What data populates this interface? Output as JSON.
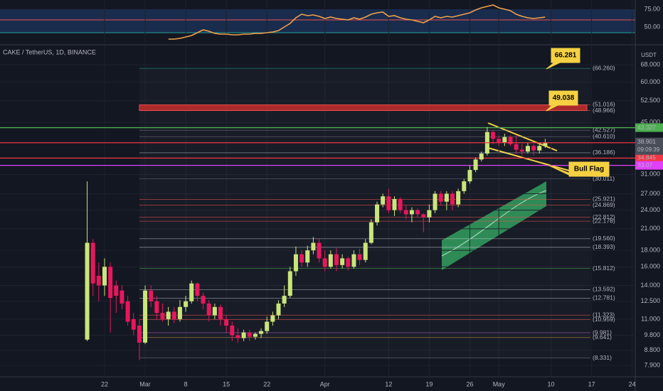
{
  "chart_data": {
    "type": "candlestick",
    "title": "CAKE / TetherUS, 1D, BINANCE",
    "axis_unit": "USDT",
    "countdown": "09:09:39",
    "log": true,
    "ylim": [
      7.28,
      75.67
    ],
    "yticks": [
      {
        "value": 68,
        "label": "68.000"
      },
      {
        "value": 60,
        "label": "60.000"
      },
      {
        "value": 52.5,
        "label": "52.500"
      },
      {
        "value": 45,
        "label": "45.000"
      },
      {
        "value": 31,
        "label": "31.000"
      },
      {
        "value": 27,
        "label": "27.000"
      },
      {
        "value": 24,
        "label": "24.000"
      },
      {
        "value": 21,
        "label": "21.000"
      },
      {
        "value": 18,
        "label": "18.000"
      },
      {
        "value": 16,
        "label": "16.000"
      },
      {
        "value": 14,
        "label": "14.000"
      },
      {
        "value": 12.5,
        "label": "12.500"
      },
      {
        "value": 11,
        "label": "11.000"
      },
      {
        "value": 9.8,
        "label": "9.800"
      },
      {
        "value": 8.8,
        "label": "8.800"
      },
      {
        "value": 7.9,
        "label": "7.900"
      }
    ],
    "up_color": "#c9e57a",
    "down_color": "#e8175d",
    "categories": [
      null,
      null,
      null,
      null,
      null,
      null,
      null,
      null,
      null,
      null,
      null,
      null,
      null,
      null,
      null,
      null,
      null,
      null,
      "22",
      null,
      null,
      null,
      null,
      null,
      null,
      "Mar",
      null,
      null,
      null,
      null,
      null,
      null,
      "8",
      null,
      null,
      null,
      null,
      null,
      null,
      "15",
      null,
      null,
      null,
      null,
      null,
      null,
      "22",
      null,
      null,
      null,
      null,
      null,
      null,
      null,
      null,
      null,
      "Apr",
      null,
      null,
      null,
      null,
      null,
      null,
      null,
      null,
      null,
      null,
      "12",
      null,
      null,
      null,
      null,
      null,
      null,
      "19",
      null,
      null,
      null,
      null,
      null,
      null,
      "26",
      null,
      null,
      null,
      null,
      "May",
      null,
      null,
      null,
      null,
      null,
      null,
      null,
      null,
      "10",
      null,
      null,
      null,
      null,
      null,
      null,
      "17",
      null,
      null,
      null,
      null,
      null,
      null,
      "24",
      null
    ],
    "open": [
      null,
      null,
      null,
      null,
      null,
      null,
      null,
      null,
      null,
      null,
      null,
      null,
      null,
      null,
      null,
      9.5,
      19,
      15,
      14,
      16,
      14,
      13.5,
      12.5,
      11,
      10.5,
      9.3,
      13.5,
      12.5,
      11.5,
      11,
      11.6,
      11,
      12,
      12.5,
      14.2,
      13,
      12.3,
      11.3,
      12,
      11,
      10.5,
      9.8,
      9.6,
      10,
      9.7,
      9.9,
      10.1,
      10.8,
      11.3,
      12.3,
      13,
      15.5,
      17.5,
      16.5,
      18,
      19,
      17,
      16,
      17.5,
      16.2,
      17,
      16,
      17.5,
      16.8,
      19,
      22,
      25,
      26.5,
      24,
      26,
      24,
      23.3,
      24,
      23.3,
      22.8,
      24,
      27,
      25.5,
      27,
      25,
      27.5,
      29.5,
      32,
      34.5,
      36,
      42,
      40,
      39,
      40.5,
      38.5,
      37,
      36.5,
      38,
      36.8,
      38,
      null,
      null,
      null,
      null,
      null,
      null,
      null,
      null,
      null,
      null,
      null,
      null,
      null,
      null,
      null,
      null
    ],
    "high": [
      null,
      null,
      null,
      null,
      null,
      null,
      null,
      null,
      null,
      null,
      null,
      null,
      null,
      null,
      null,
      29.5,
      19.5,
      16.5,
      17,
      16.5,
      14.5,
      14,
      13,
      11.5,
      11,
      14,
      14,
      13,
      12.3,
      12,
      12,
      12.6,
      13,
      14.5,
      14.3,
      13.3,
      12.6,
      12.3,
      12.2,
      11.3,
      10.8,
      10.3,
      10.2,
      10.2,
      10,
      10.3,
      11.2,
      11.6,
      12.6,
      14,
      16,
      18.5,
      18,
      18.6,
      19.8,
      19.5,
      18,
      18,
      18.3,
      17.5,
      17.2,
      18,
      18.2,
      19.5,
      22.5,
      25.5,
      27,
      28,
      26.5,
      26.3,
      24.8,
      24.5,
      24.3,
      23.5,
      25,
      27.5,
      27.5,
      27.5,
      27.5,
      28,
      30,
      33,
      35,
      36.5,
      43.5,
      42.5,
      41,
      41.5,
      41,
      41,
      38.5,
      39,
      38.5,
      38.5,
      40,
      null,
      null,
      null,
      null,
      null,
      null,
      null,
      null,
      null,
      null,
      null,
      null,
      null,
      null,
      null,
      null
    ],
    "low": [
      null,
      null,
      null,
      null,
      null,
      null,
      null,
      null,
      null,
      null,
      null,
      null,
      null,
      null,
      null,
      9.4,
      13,
      12.5,
      13,
      10,
      11.5,
      11.8,
      10.5,
      9.8,
      8.2,
      9.2,
      12,
      11,
      10.8,
      10.5,
      10.7,
      10.8,
      11.6,
      12.3,
      12.5,
      11.8,
      10.8,
      11,
      10.5,
      10,
      9.4,
      9.3,
      9.4,
      9.4,
      9.5,
      9.6,
      9.9,
      10.5,
      11,
      12,
      12.8,
      15,
      16,
      16,
      17.5,
      16.5,
      15.5,
      15.8,
      15.5,
      15.8,
      15.6,
      15.8,
      16.2,
      16.5,
      18.8,
      21.5,
      24.5,
      23.5,
      23,
      23.5,
      22.5,
      22,
      22.8,
      20.5,
      22,
      23.5,
      24.8,
      24,
      24,
      24.5,
      27,
      29,
      31.5,
      34,
      35.5,
      38.5,
      38,
      38,
      38,
      36,
      35.5,
      36,
      35.5,
      36,
      37.5,
      null,
      null,
      null,
      null,
      null,
      null,
      null,
      null,
      null,
      null,
      null,
      null,
      null,
      null,
      null,
      null
    ],
    "close": [
      null,
      null,
      null,
      null,
      null,
      null,
      null,
      null,
      null,
      null,
      null,
      null,
      null,
      null,
      null,
      19,
      14.2,
      14,
      16,
      12.8,
      13,
      12.3,
      10.8,
      10.2,
      9.3,
      13.5,
      12.5,
      11.5,
      11,
      11.6,
      11,
      12,
      12.5,
      14.2,
      13,
      12.3,
      11.3,
      12,
      11,
      10.5,
      9.8,
      9.6,
      10,
      9.7,
      9.9,
      10.1,
      10.8,
      11.3,
      12.3,
      13,
      15.5,
      17.5,
      16.5,
      18,
      19,
      17,
      16,
      17.5,
      16.2,
      17,
      16,
      17.5,
      16.8,
      19,
      22,
      25,
      26.5,
      24,
      26,
      24,
      23.3,
      24,
      23.3,
      22.8,
      24,
      27,
      25.5,
      27,
      25,
      27.5,
      29.5,
      32,
      34.5,
      36,
      42,
      40,
      39,
      40.5,
      38.5,
      37,
      36.5,
      38,
      36.8,
      38,
      38.901,
      null,
      null,
      null,
      null,
      null,
      null,
      null,
      null,
      null,
      null,
      null,
      null,
      null,
      null,
      null,
      null
    ],
    "levels": [
      {
        "value": 66.26,
        "label": "(66.260)",
        "color": "#26a69a"
      },
      {
        "value": 51.016,
        "label": "(51.016)",
        "color": "#ef5350"
      },
      {
        "value": 48.966,
        "label": "(48.966)",
        "color": "#ef5350"
      },
      {
        "value": 42.527,
        "label": "(42.527)",
        "color": "#787b86"
      },
      {
        "value": 40.61,
        "label": "(40.610)",
        "color": "#787b86"
      },
      {
        "value": 36.186,
        "label": "(36.186)",
        "color": "#d1d4dc"
      },
      {
        "value": 30.011,
        "label": "(30.011)",
        "color": "#787b86"
      },
      {
        "value": 25.921,
        "label": "(25.921)",
        "color": "#ef5350"
      },
      {
        "value": 24.869,
        "label": "(24.869)",
        "color": "#ef5350"
      },
      {
        "value": 22.812,
        "label": "(22.812)",
        "color": "#ef5350"
      },
      {
        "value": 22.178,
        "label": "(22.178)",
        "color": "#ef5350"
      },
      {
        "value": 19.56,
        "label": "(19.560)",
        "color": "#d1d4dc"
      },
      {
        "value": 18.393,
        "label": "(18.393)",
        "color": "#d1d4dc"
      },
      {
        "value": 15.812,
        "label": "(15.812)",
        "color": "#4caf50"
      },
      {
        "value": 13.592,
        "label": "(13.592)",
        "color": "#d1d4dc"
      },
      {
        "value": 12.781,
        "label": "(12.781)",
        "color": "#d1d4dc"
      },
      {
        "value": 11.323,
        "label": "(11.323)",
        "color": "#ef5350"
      },
      {
        "value": 10.959,
        "label": "(10.959)",
        "color": "#ef5350"
      },
      {
        "value": 9.981,
        "label": "(9.981)",
        "color": "#ba68c8"
      },
      {
        "value": 9.641,
        "label": "(9.641)",
        "color": "#ffb74d"
      },
      {
        "value": 8.331,
        "label": "(8.331)",
        "color": "#787b86"
      }
    ],
    "hlines": [
      {
        "value": 43.327,
        "color": "#4caf50"
      },
      {
        "value": 34.845,
        "color": "#f23645"
      },
      {
        "value": 33.07,
        "color": "#e040fb"
      }
    ],
    "annotations": [
      "66.281",
      "49.038",
      "Bull Flag"
    ],
    "rsi": {
      "ylim": [
        26,
        88
      ],
      "yticks": [
        {
          "value": 75,
          "label": "75.00"
        },
        {
          "value": 50,
          "label": "50.00"
        }
      ],
      "color": "#f0a04b",
      "values": [
        null,
        null,
        null,
        null,
        null,
        null,
        null,
        null,
        null,
        null,
        null,
        null,
        null,
        null,
        null,
        null,
        null,
        null,
        null,
        null,
        null,
        null,
        null,
        null,
        null,
        null,
        null,
        null,
        null,
        33,
        33,
        34,
        36,
        38,
        42,
        46,
        44,
        41,
        40,
        40,
        39,
        39,
        40,
        40,
        41,
        41,
        42,
        43,
        45,
        50,
        55,
        63,
        68,
        66,
        67,
        65,
        62,
        64,
        62,
        61,
        60,
        63,
        61,
        64,
        68,
        70,
        71,
        65,
        66,
        63,
        61,
        60,
        58,
        56,
        60,
        65,
        63,
        65,
        64,
        66,
        68,
        70,
        74,
        77,
        79,
        81,
        77,
        75,
        73,
        68,
        65,
        63,
        62,
        63,
        64,
        null,
        null,
        null,
        null,
        null,
        null,
        null,
        null,
        null,
        null,
        null,
        null,
        null,
        null,
        null,
        null
      ]
    }
  }
}
